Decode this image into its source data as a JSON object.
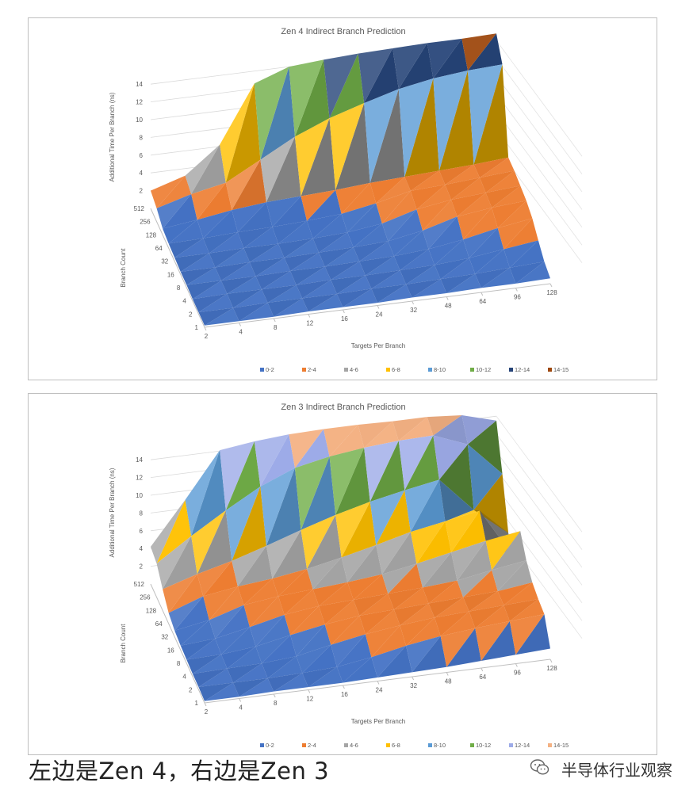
{
  "colors": {
    "0-2": "#4472c4",
    "2-4": "#ed7d31",
    "4-6": "#a5a5a5",
    "6-8": "#ffc000",
    "8-10": "#5b9bd5",
    "10-12": "#70ad47",
    "12-14": "#264478",
    "14-15": "#9e480e",
    "zen3_12-14": "#9dabe8",
    "zen3_14-15": "#f4b183"
  },
  "chart_data": [
    {
      "type": "surface3d",
      "title": "Zen 4 Indirect Branch Prediction",
      "xlabel": "Targets Per Branch",
      "ylabel": "Branch Count",
      "zlabel": "Additional Time Per Branch (ns)",
      "x_ticks": [
        "2",
        "4",
        "8",
        "12",
        "16",
        "24",
        "32",
        "48",
        "64",
        "96",
        "128"
      ],
      "y_ticks": [
        "1",
        "2",
        "4",
        "8",
        "16",
        "32",
        "64",
        "128",
        "256",
        "512"
      ],
      "z_ticks": [
        "2",
        "4",
        "6",
        "8",
        "10",
        "12",
        "14"
      ],
      "zlim": [
        0,
        15
      ],
      "legend": [
        "0-2",
        "2-4",
        "4-6",
        "6-8",
        "8-10",
        "10-12",
        "12-14",
        "14-15"
      ],
      "legend_position": "bottom",
      "z_values": [
        [
          0.2,
          0.2,
          0.2,
          0.3,
          0.3,
          0.3,
          0.4,
          0.4,
          0.5,
          0.5,
          0.6
        ],
        [
          0.2,
          0.2,
          0.3,
          0.3,
          0.3,
          0.4,
          0.4,
          0.5,
          0.6,
          0.8,
          1.0
        ],
        [
          0.2,
          0.3,
          0.3,
          0.3,
          0.4,
          0.4,
          0.5,
          0.6,
          0.9,
          1.4,
          1.9
        ],
        [
          0.3,
          0.3,
          0.3,
          0.4,
          0.4,
          0.5,
          0.6,
          0.9,
          1.5,
          2.3,
          2.9
        ],
        [
          0.3,
          0.3,
          0.4,
          0.4,
          0.5,
          0.6,
          0.8,
          1.5,
          2.6,
          3.1,
          3.4
        ],
        [
          0.4,
          0.4,
          0.5,
          0.5,
          0.6,
          0.8,
          1.3,
          2.4,
          3.0,
          3.3,
          3.6
        ],
        [
          0.5,
          0.6,
          0.8,
          0.9,
          1.1,
          1.4,
          2.1,
          3.0,
          3.2,
          3.5,
          3.8
        ],
        [
          0.7,
          1.2,
          1.8,
          2.2,
          2.4,
          2.6,
          2.9,
          3.1,
          3.3,
          3.5,
          3.8
        ],
        [
          1.5,
          2.6,
          3.4,
          5.5,
          7.6,
          9.2,
          10.4,
          11.5,
          12.2,
          12.6,
          12.8
        ],
        [
          2.0,
          3.2,
          6.2,
          12.6,
          14.0,
          14.3,
          14.5,
          14.6,
          14.7,
          14.7,
          14.8
        ]
      ]
    },
    {
      "type": "surface3d",
      "title": "Zen 3 Indirect Branch Prediction",
      "xlabel": "Targets Per Branch",
      "ylabel": "Branch Count",
      "zlabel": "Additional Time Per Branch (ns)",
      "x_ticks": [
        "2",
        "4",
        "8",
        "12",
        "16",
        "24",
        "32",
        "48",
        "64",
        "96",
        "128"
      ],
      "y_ticks": [
        "1",
        "2",
        "4",
        "8",
        "16",
        "32",
        "64",
        "128",
        "256",
        "512"
      ],
      "z_ticks": [
        "2",
        "4",
        "6",
        "8",
        "10",
        "12",
        "14"
      ],
      "zlim": [
        0,
        15
      ],
      "legend": [
        "0-2",
        "2-4",
        "4-6",
        "6-8",
        "8-10",
        "10-12",
        "12-14",
        "14-15"
      ],
      "legend_position": "bottom",
      "z_values": [
        [
          0.2,
          0.2,
          0.3,
          0.3,
          0.3,
          0.4,
          0.5,
          0.6,
          0.8,
          1.0,
          1.2
        ],
        [
          0.3,
          0.3,
          0.3,
          0.4,
          0.6,
          1.2,
          2.0,
          2.6,
          3.0,
          3.3,
          3.6
        ],
        [
          0.3,
          0.4,
          0.5,
          0.8,
          1.6,
          2.3,
          2.8,
          3.2,
          3.4,
          3.6,
          3.8
        ],
        [
          0.4,
          0.5,
          0.9,
          1.7,
          2.4,
          2.9,
          3.1,
          3.3,
          3.5,
          3.7,
          4.2
        ],
        [
          0.5,
          0.8,
          1.6,
          2.5,
          3.0,
          3.2,
          3.4,
          3.6,
          3.9,
          4.6,
          5.2
        ],
        [
          0.7,
          1.4,
          2.6,
          3.1,
          3.4,
          3.7,
          4.1,
          4.8,
          5.6,
          6.4,
          7.0
        ],
        [
          1.2,
          2.6,
          3.2,
          3.6,
          4.2,
          5.0,
          5.9,
          6.9,
          7.6,
          8.3,
          2.5
        ],
        [
          2.4,
          3.6,
          4.6,
          5.8,
          7.1,
          8.3,
          9.3,
          10.1,
          10.8,
          6.9,
          3.8
        ],
        [
          3.8,
          6.4,
          8.8,
          11.0,
          12.6,
          13.4,
          13.9,
          14.2,
          14.3,
          12.8,
          9.0
        ],
        [
          4.2,
          9.0,
          14.1,
          14.6,
          14.9,
          15.0,
          15.0,
          14.9,
          14.9,
          14.6,
          13.5
        ]
      ]
    }
  ],
  "caption": "左边是Zen 4，右边是Zen 3",
  "watermark": "半导体行业观察"
}
